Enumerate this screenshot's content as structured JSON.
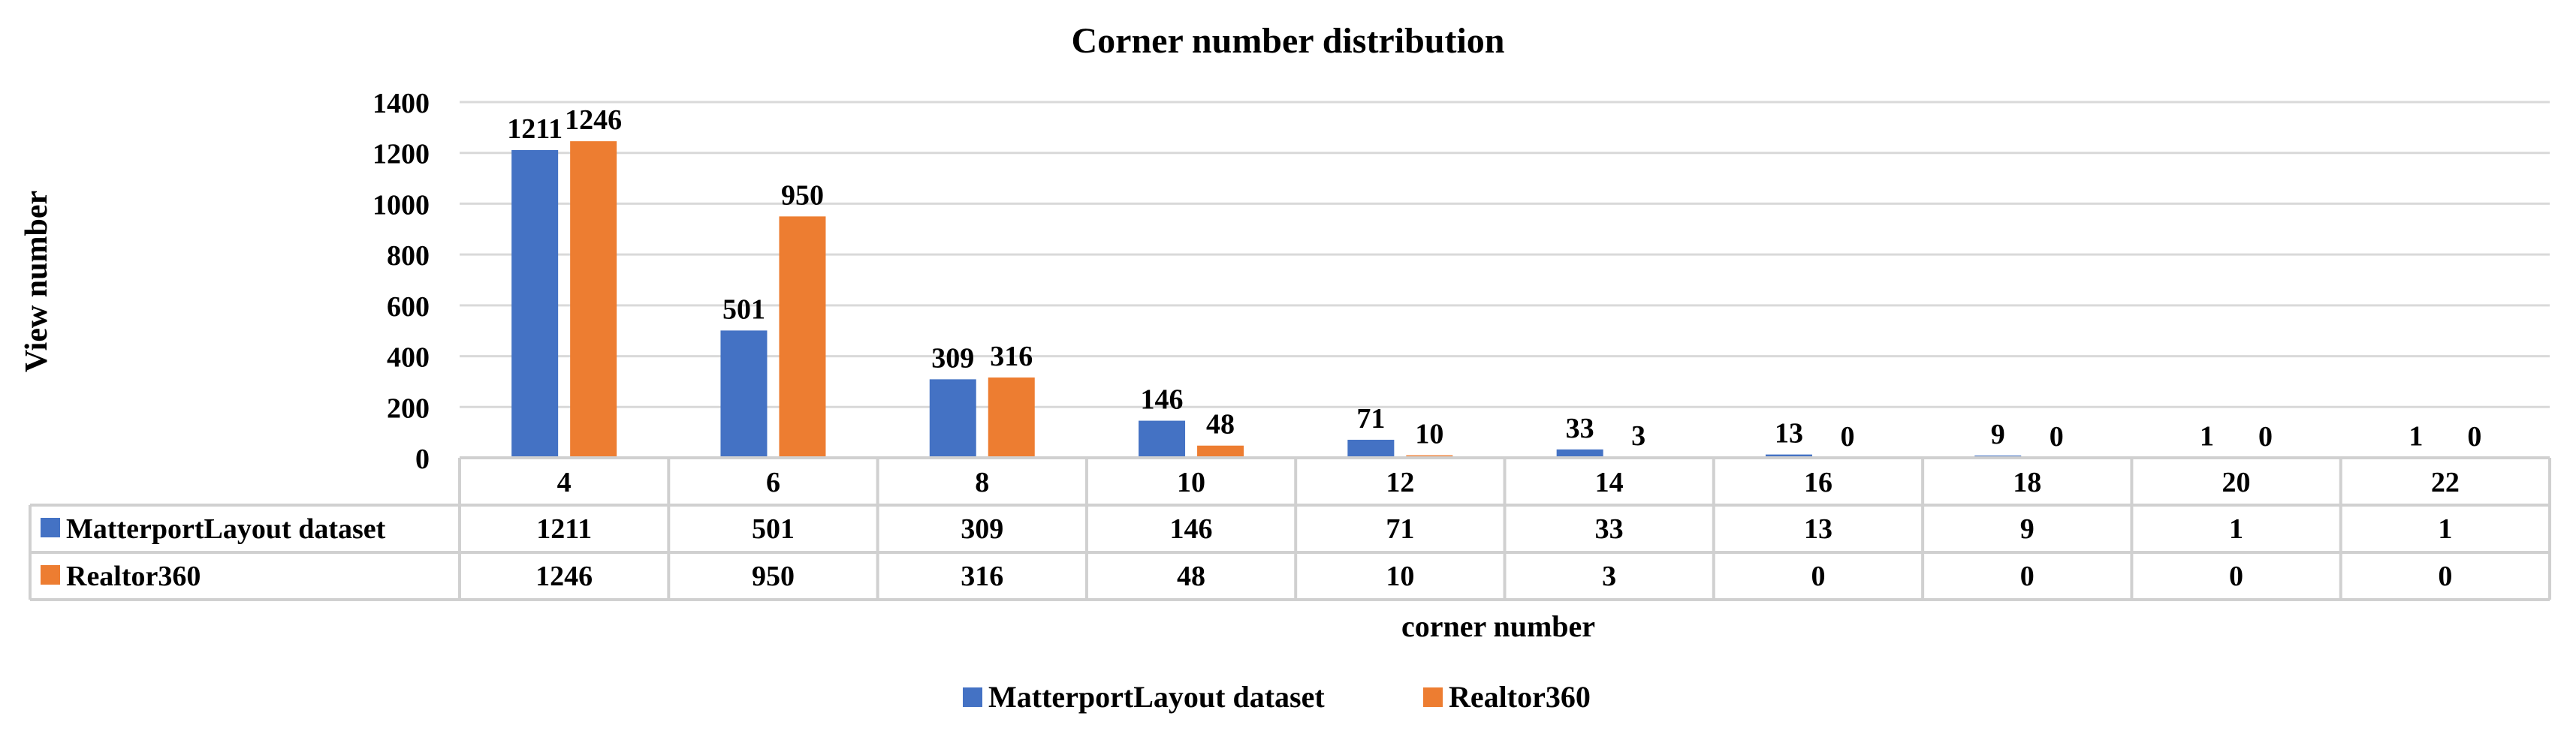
{
  "chart_data": {
    "type": "bar",
    "title": "Corner number distribution",
    "xlabel": "corner number",
    "ylabel": "View number",
    "categories": [
      "4",
      "6",
      "8",
      "10",
      "12",
      "14",
      "16",
      "18",
      "20",
      "22"
    ],
    "series": [
      {
        "name": "MatterportLayout dataset",
        "color": "#4472C4",
        "values": [
          1211,
          501,
          309,
          146,
          71,
          33,
          13,
          9,
          1,
          1
        ]
      },
      {
        "name": "Realtor360",
        "color": "#ED7D31",
        "values": [
          1246,
          950,
          316,
          48,
          10,
          3,
          0,
          0,
          0,
          0
        ]
      }
    ],
    "ylim": [
      0,
      1400
    ],
    "yticks": [
      0,
      200,
      400,
      600,
      800,
      1000,
      1200,
      1400
    ],
    "grid": true,
    "legend": "bottom",
    "data_table": true
  }
}
